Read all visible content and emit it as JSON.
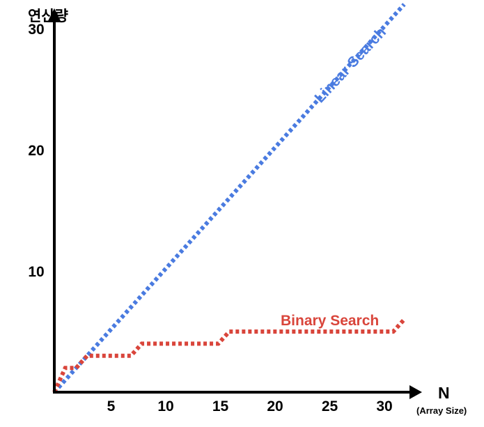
{
  "chart_data": {
    "type": "line",
    "ylabel": "연산량",
    "xlabel": "N",
    "xlabel_sub": "(Array Size)",
    "x_ticks": [
      5,
      10,
      15,
      20,
      25,
      30
    ],
    "y_ticks": [
      10,
      20,
      30
    ],
    "xlim": [
      0,
      32.5
    ],
    "ylim": [
      0,
      33
    ],
    "grid": false,
    "legend": "none",
    "series": [
      {
        "name": "Linear Search",
        "color": "#4A7BE0",
        "line_style": "dotted",
        "x": [
          0,
          32
        ],
        "y": [
          0,
          32
        ]
      },
      {
        "name": "Binary Search",
        "color": "#D9453B",
        "line_style": "dotted",
        "x": [
          0,
          1,
          2,
          3,
          4,
          7,
          8,
          15,
          16,
          31,
          32
        ],
        "y": [
          0,
          2,
          2,
          3,
          3,
          3,
          4,
          4,
          5,
          5,
          6
        ]
      }
    ]
  }
}
